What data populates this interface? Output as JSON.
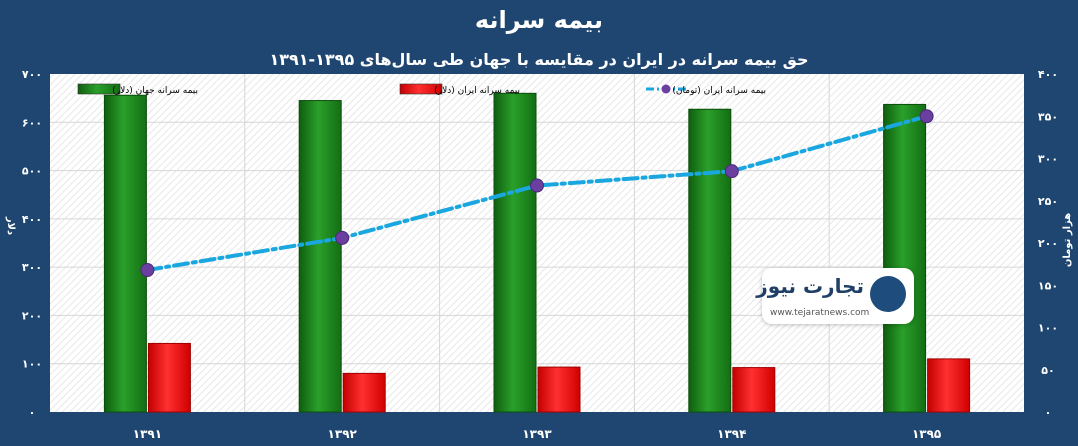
{
  "title": "بیمه سرانه",
  "subtitle": "حق بیمه سرانه در ایران در مقایسه با جهان طی سال‌های ۱۳۹۵-۱۳۹۱",
  "watermark": {
    "name": "تجارت نیوز",
    "url": "www.tejaratnews.com"
  },
  "chart_data": {
    "type": "bar",
    "categories": [
      "۱۳۹۱",
      "۱۳۹۲",
      "۱۳۹۳",
      "۱۳۹۴",
      "۱۳۹۵"
    ],
    "series": [
      {
        "name": "بیمه سرانه جهان (دلار)",
        "type": "bar",
        "axis": "left",
        "color": "#1e8a1e",
        "values": [
          656,
          645,
          660,
          627,
          637
        ]
      },
      {
        "name": "بیمه سرانه ایران (دلار)",
        "type": "bar",
        "axis": "left",
        "color": "#ff1a1a",
        "values": [
          142,
          80,
          93,
          92,
          110
        ]
      },
      {
        "name": "بیمه سرانه ایران (تومان)",
        "type": "line",
        "axis": "right",
        "color": "#1aa7e0",
        "marker_color": "#6b3fa0",
        "values": [
          168,
          206,
          268,
          285,
          350
        ]
      }
    ],
    "left_axis": {
      "label": "دلار",
      "ylim": [
        0,
        700
      ],
      "ticks": [
        "۰",
        "۱۰۰",
        "۲۰۰",
        "۳۰۰",
        "۴۰۰",
        "۵۰۰",
        "۶۰۰",
        "۷۰۰"
      ]
    },
    "right_axis": {
      "label": "هزار تومان",
      "ylim": [
        0,
        400
      ],
      "ticks": [
        "۰",
        "۵۰",
        "۱۰۰",
        "۱۵۰",
        "۲۰۰",
        "۲۵۰",
        "۳۰۰",
        "۳۵۰",
        "۴۰۰"
      ]
    },
    "grid": true,
    "legend": "top"
  }
}
